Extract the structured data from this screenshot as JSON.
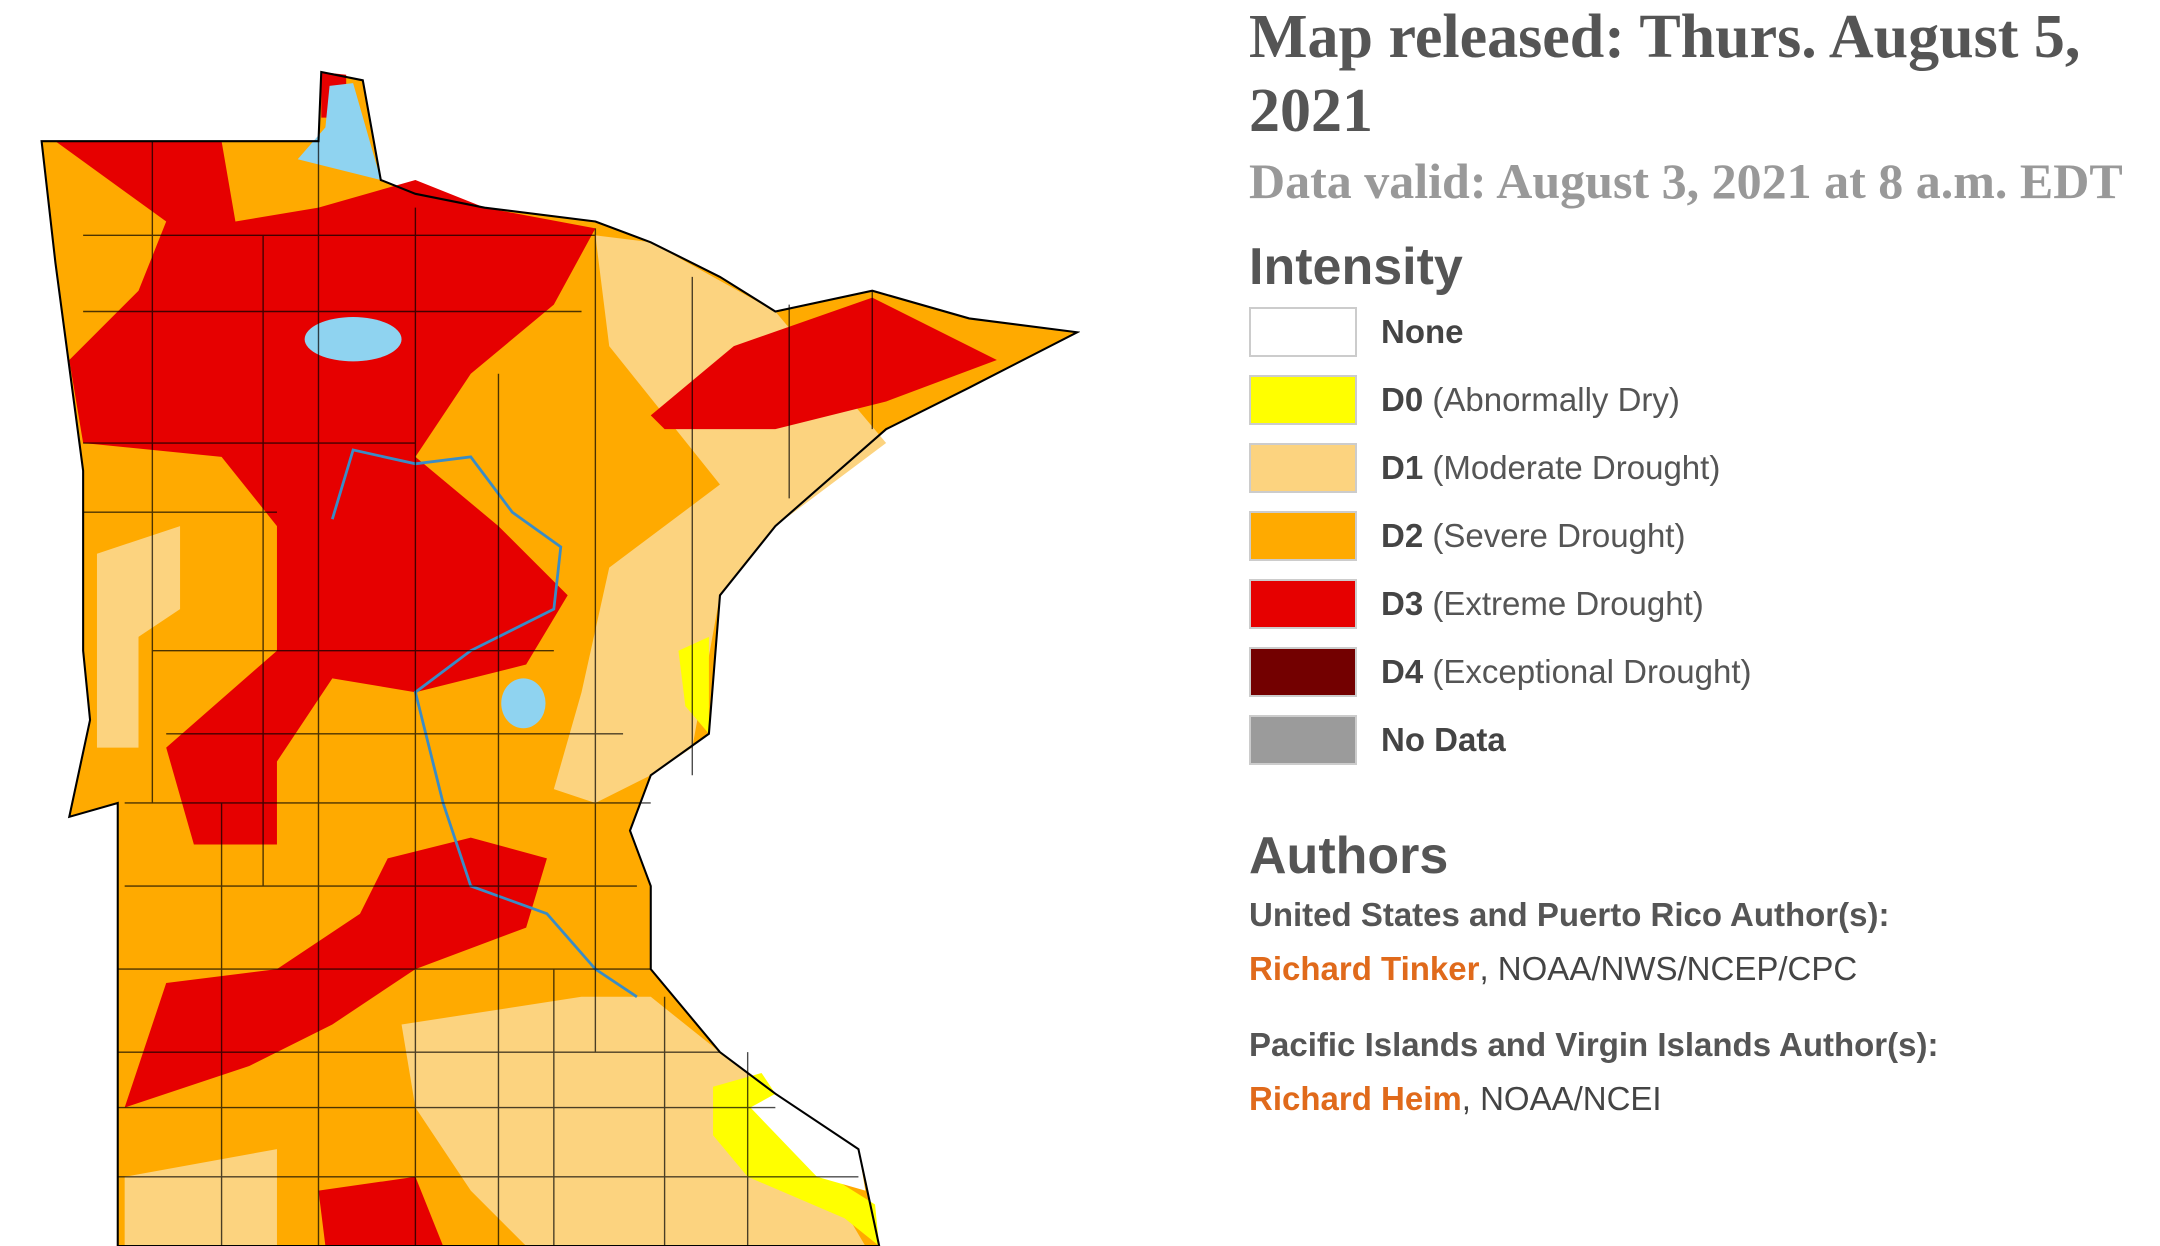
{
  "header": {
    "released": "Map released: Thurs. August 5, 2021",
    "valid": "Data valid: August 3, 2021 at 8 a.m. EDT"
  },
  "legend": {
    "title": "Intensity",
    "items": [
      {
        "code": "None",
        "color": "#ffffff"
      },
      {
        "code": "D0",
        "description": "(Abnormally Dry)",
        "color": "#ffff00"
      },
      {
        "code": "D1",
        "description": "(Moderate Drought)",
        "color": "#fcd37f"
      },
      {
        "code": "D2",
        "description": "(Severe Drought)",
        "color": "#ffaa00"
      },
      {
        "code": "D3",
        "description": "(Extreme Drought)",
        "color": "#e60000"
      },
      {
        "code": "D4",
        "description": "(Exceptional Drought)",
        "color": "#730000"
      },
      {
        "code": "No Data",
        "color": "#9b9b9b"
      }
    ]
  },
  "authors": {
    "title": "Authors",
    "groups": [
      {
        "heading": "United States and Puerto Rico Author(s):",
        "name": "Richard Tinker",
        "affiliation": ", NOAA/NWS/NCEP/CPC"
      },
      {
        "heading": "Pacific Islands and Virgin Islands Author(s):",
        "name": "Richard Heim",
        "affiliation": ", NOAA/NCEI"
      }
    ]
  }
}
